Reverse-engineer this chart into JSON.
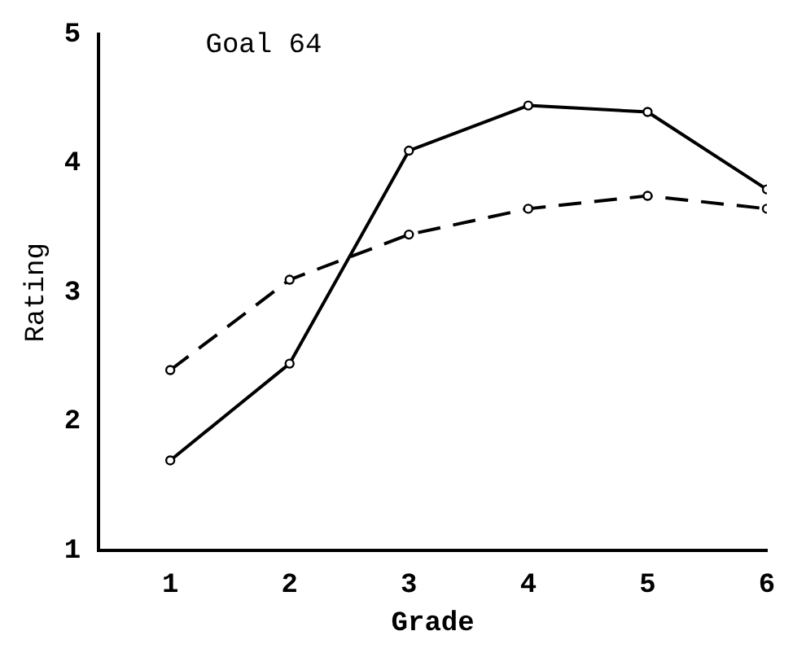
{
  "chart_data": {
    "type": "line",
    "title": "Goal 64",
    "xlabel": "Grade",
    "ylabel": "Rating",
    "x": [
      1,
      2,
      3,
      4,
      5,
      6
    ],
    "series": [
      {
        "color": "#000000",
        "line_style": "solid",
        "values": [
          1.7,
          2.45,
          4.1,
          4.45,
          4.4,
          3.8
        ]
      },
      {
        "color": "#000000",
        "line_style": "dashed",
        "values": [
          2.4,
          3.1,
          3.45,
          3.65,
          3.75,
          3.65
        ]
      }
    ],
    "xlim": [
      0.4,
      6
    ],
    "xticks": [
      1,
      2,
      3,
      4,
      5,
      6
    ],
    "ylim": [
      1,
      5
    ],
    "yticks": [
      1,
      2,
      3,
      4,
      5
    ],
    "marker": "circle",
    "grid": false,
    "legend": false
  }
}
